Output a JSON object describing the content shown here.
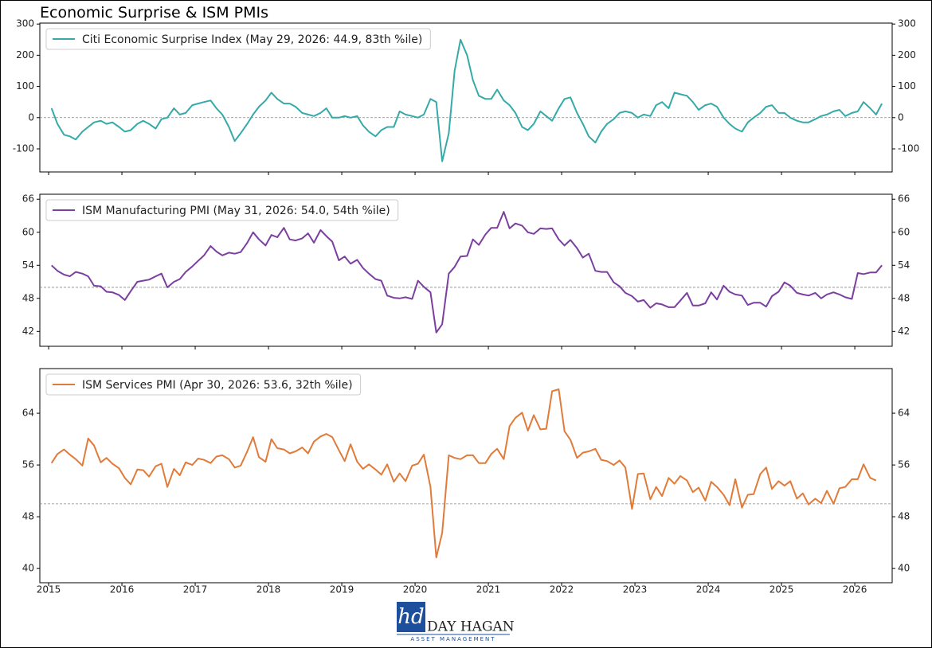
{
  "title": "Economic Surprise & ISM PMIs",
  "logo": {
    "mark": "hd",
    "name": "DAY HAGAN",
    "subtitle": "ASSET MANAGEMENT"
  },
  "chart_data": [
    {
      "type": "line",
      "legend": "upper left",
      "reference_line": 0,
      "xlim": [
        2014.88,
        2026.51
      ],
      "xticks": [
        2015,
        2016,
        2017,
        2018,
        2019,
        2020,
        2021,
        2022,
        2023,
        2024,
        2025,
        2026
      ],
      "ylim": [
        -174,
        303
      ],
      "yticks": [
        -100,
        0,
        100,
        200,
        300
      ],
      "series": [
        {
          "name": "Citi Economic Surprise Index (May 29, 2026: 44.9, 83th %ile)",
          "color": "#35aaa8",
          "x": [
            2015.04,
            2015.12,
            2015.21,
            2015.29,
            2015.37,
            2015.46,
            2015.54,
            2015.62,
            2015.71,
            2015.79,
            2015.87,
            2015.96,
            2016.04,
            2016.12,
            2016.21,
            2016.29,
            2016.37,
            2016.46,
            2016.54,
            2016.62,
            2016.71,
            2016.79,
            2016.87,
            2016.96,
            2017.04,
            2017.12,
            2017.21,
            2017.29,
            2017.37,
            2017.46,
            2017.54,
            2017.62,
            2017.71,
            2017.79,
            2017.87,
            2017.96,
            2018.04,
            2018.12,
            2018.21,
            2018.29,
            2018.37,
            2018.46,
            2018.54,
            2018.62,
            2018.71,
            2018.79,
            2018.87,
            2018.96,
            2019.04,
            2019.12,
            2019.21,
            2019.29,
            2019.37,
            2019.46,
            2019.54,
            2019.62,
            2019.71,
            2019.79,
            2019.87,
            2019.96,
            2020.04,
            2020.12,
            2020.21,
            2020.29,
            2020.37,
            2020.46,
            2020.54,
            2020.62,
            2020.71,
            2020.79,
            2020.87,
            2020.96,
            2021.04,
            2021.12,
            2021.21,
            2021.29,
            2021.37,
            2021.46,
            2021.54,
            2021.62,
            2021.71,
            2021.79,
            2021.87,
            2021.96,
            2022.04,
            2022.12,
            2022.21,
            2022.29,
            2022.37,
            2022.46,
            2022.54,
            2022.62,
            2022.71,
            2022.79,
            2022.87,
            2022.96,
            2023.04,
            2023.12,
            2023.21,
            2023.29,
            2023.37,
            2023.46,
            2023.54,
            2023.62,
            2023.71,
            2023.79,
            2023.87,
            2023.96,
            2024.04,
            2024.12,
            2024.21,
            2024.29,
            2024.37,
            2024.46,
            2024.54,
            2024.62,
            2024.71,
            2024.79,
            2024.87,
            2024.96,
            2025.04,
            2025.12,
            2025.21,
            2025.29,
            2025.37,
            2025.46,
            2025.54,
            2025.62,
            2025.71,
            2025.79,
            2025.87,
            2025.96,
            2026.04,
            2026.12,
            2026.21,
            2026.29,
            2026.37
          ],
          "values": [
            30,
            -20,
            -55,
            -60,
            -70,
            -45,
            -30,
            -15,
            -10,
            -20,
            -15,
            -30,
            -45,
            -40,
            -20,
            -10,
            -20,
            -35,
            -5,
            0,
            30,
            10,
            15,
            40,
            45,
            50,
            55,
            30,
            10,
            -30,
            -75,
            -50,
            -20,
            10,
            35,
            55,
            80,
            60,
            45,
            45,
            35,
            15,
            10,
            5,
            15,
            30,
            0,
            0,
            5,
            0,
            5,
            -25,
            -45,
            -60,
            -40,
            -30,
            -30,
            20,
            10,
            5,
            0,
            10,
            60,
            50,
            -140,
            -50,
            150,
            250,
            200,
            120,
            70,
            60,
            60,
            90,
            55,
            40,
            15,
            -30,
            -40,
            -20,
            20,
            5,
            -10,
            30,
            60,
            65,
            15,
            -20,
            -60,
            -80,
            -45,
            -20,
            -5,
            15,
            20,
            15,
            0,
            10,
            5,
            40,
            50,
            30,
            80,
            75,
            70,
            50,
            25,
            40,
            45,
            35,
            0,
            -20,
            -35,
            -45,
            -15,
            0,
            15,
            35,
            40,
            15,
            15,
            0,
            -10,
            -15,
            -15,
            -5,
            5,
            10,
            20,
            25,
            5,
            15,
            20,
            50,
            30,
            10,
            44.9
          ]
        }
      ]
    },
    {
      "type": "line",
      "legend": "upper left",
      "reference_line": 50,
      "xlim": [
        2014.88,
        2026.51
      ],
      "xticks": [
        2015,
        2016,
        2017,
        2018,
        2019,
        2020,
        2021,
        2022,
        2023,
        2024,
        2025,
        2026
      ],
      "ylim": [
        39.3,
        66.9
      ],
      "yticks": [
        42,
        48,
        54,
        60,
        66
      ],
      "series": [
        {
          "name": "ISM Manufacturing PMI (May 31, 2026: 54.0, 54th %ile)",
          "color": "#7b3fa0",
          "x": [
            2015.04,
            2015.12,
            2015.21,
            2015.29,
            2015.37,
            2015.46,
            2015.54,
            2015.62,
            2015.71,
            2015.79,
            2015.87,
            2015.96,
            2016.04,
            2016.12,
            2016.21,
            2016.29,
            2016.37,
            2016.46,
            2016.54,
            2016.62,
            2016.71,
            2016.79,
            2016.87,
            2016.96,
            2017.04,
            2017.12,
            2017.21,
            2017.29,
            2017.37,
            2017.46,
            2017.54,
            2017.62,
            2017.71,
            2017.79,
            2017.87,
            2017.96,
            2018.04,
            2018.12,
            2018.21,
            2018.29,
            2018.37,
            2018.46,
            2018.54,
            2018.62,
            2018.71,
            2018.79,
            2018.87,
            2018.96,
            2019.04,
            2019.12,
            2019.21,
            2019.29,
            2019.37,
            2019.46,
            2019.54,
            2019.62,
            2019.71,
            2019.79,
            2019.87,
            2019.96,
            2020.04,
            2020.12,
            2020.21,
            2020.29,
            2020.37,
            2020.46,
            2020.54,
            2020.62,
            2020.71,
            2020.79,
            2020.87,
            2020.96,
            2021.04,
            2021.12,
            2021.21,
            2021.29,
            2021.37,
            2021.46,
            2021.54,
            2021.62,
            2021.71,
            2021.79,
            2021.87,
            2021.96,
            2022.04,
            2022.12,
            2022.21,
            2022.29,
            2022.37,
            2022.46,
            2022.54,
            2022.62,
            2022.71,
            2022.79,
            2022.87,
            2022.96,
            2023.04,
            2023.12,
            2023.21,
            2023.29,
            2023.37,
            2023.46,
            2023.54,
            2023.62,
            2023.71,
            2023.79,
            2023.87,
            2023.96,
            2024.04,
            2024.12,
            2024.21,
            2024.29,
            2024.37,
            2024.46,
            2024.54,
            2024.62,
            2024.71,
            2024.79,
            2024.87,
            2024.96,
            2025.04,
            2025.12,
            2025.21,
            2025.29,
            2025.37,
            2025.46,
            2025.54,
            2025.62,
            2025.71,
            2025.79,
            2025.87,
            2025.96,
            2026.04,
            2026.12,
            2026.21,
            2026.29,
            2026.37
          ],
          "values": [
            54.0,
            53.0,
            52.3,
            52.0,
            52.8,
            52.5,
            52.0,
            50.3,
            50.2,
            49.2,
            49.1,
            48.6,
            47.7,
            49.3,
            51.0,
            51.2,
            51.4,
            52.0,
            52.5,
            50.0,
            51.0,
            51.5,
            52.8,
            53.8,
            54.8,
            55.8,
            57.5,
            56.5,
            55.8,
            56.3,
            56.1,
            56.4,
            58.1,
            60.0,
            58.7,
            57.6,
            59.5,
            59.1,
            60.8,
            58.7,
            58.5,
            58.9,
            59.8,
            58.1,
            60.4,
            59.3,
            58.3,
            54.9,
            55.6,
            54.3,
            55.0,
            53.5,
            52.5,
            51.5,
            51.2,
            48.5,
            48.1,
            48.0,
            48.2,
            47.9,
            51.2,
            50.1,
            49.1,
            41.8,
            43.3,
            52.5,
            53.7,
            55.6,
            55.7,
            58.7,
            57.7,
            59.6,
            60.8,
            60.8,
            63.7,
            60.7,
            61.6,
            61.2,
            60.0,
            59.7,
            60.7,
            60.6,
            60.7,
            58.7,
            57.6,
            58.6,
            57.1,
            55.4,
            56.1,
            53.0,
            52.8,
            52.8,
            50.9,
            50.2,
            49.0,
            48.4,
            47.4,
            47.7,
            46.3,
            47.1,
            46.9,
            46.4,
            46.4,
            47.6,
            49.0,
            46.7,
            46.7,
            47.1,
            49.1,
            47.8,
            50.3,
            49.2,
            48.7,
            48.5,
            46.8,
            47.2,
            47.2,
            46.5,
            48.4,
            49.2,
            50.9,
            50.3,
            49.0,
            48.7,
            48.5,
            49.0,
            48.0,
            48.7,
            49.1,
            48.7,
            48.2,
            47.9,
            52.6,
            52.4,
            52.7,
            52.7,
            54.0
          ]
        }
      ]
    },
    {
      "type": "line",
      "legend": "upper left",
      "reference_line": 50,
      "xlim": [
        2014.88,
        2026.51
      ],
      "xticks": [
        2015,
        2016,
        2017,
        2018,
        2019,
        2020,
        2021,
        2022,
        2023,
        2024,
        2025,
        2026
      ],
      "ylim": [
        37.8,
        70.9
      ],
      "yticks": [
        40,
        48,
        56,
        64
      ],
      "series": [
        {
          "name": "ISM Services PMI (Apr 30, 2026: 53.6, 32th %ile)",
          "color": "#e07b39",
          "x": [
            2015.04,
            2015.12,
            2015.21,
            2015.29,
            2015.37,
            2015.46,
            2015.54,
            2015.62,
            2015.71,
            2015.79,
            2015.87,
            2015.96,
            2016.04,
            2016.12,
            2016.21,
            2016.29,
            2016.37,
            2016.46,
            2016.54,
            2016.62,
            2016.71,
            2016.79,
            2016.87,
            2016.96,
            2017.04,
            2017.12,
            2017.21,
            2017.29,
            2017.37,
            2017.46,
            2017.54,
            2017.62,
            2017.71,
            2017.79,
            2017.87,
            2017.96,
            2018.04,
            2018.12,
            2018.21,
            2018.29,
            2018.37,
            2018.46,
            2018.54,
            2018.62,
            2018.71,
            2018.79,
            2018.87,
            2018.96,
            2019.04,
            2019.12,
            2019.21,
            2019.29,
            2019.37,
            2019.46,
            2019.54,
            2019.62,
            2019.71,
            2019.79,
            2019.87,
            2019.96,
            2020.04,
            2020.12,
            2020.21,
            2020.29,
            2020.37,
            2020.46,
            2020.54,
            2020.62,
            2020.71,
            2020.79,
            2020.87,
            2020.96,
            2021.04,
            2021.12,
            2021.21,
            2021.29,
            2021.37,
            2021.46,
            2021.54,
            2021.62,
            2021.71,
            2021.79,
            2021.87,
            2021.96,
            2022.04,
            2022.12,
            2022.21,
            2022.29,
            2022.37,
            2022.46,
            2022.54,
            2022.62,
            2022.71,
            2022.79,
            2022.87,
            2022.96,
            2023.04,
            2023.12,
            2023.21,
            2023.29,
            2023.37,
            2023.46,
            2023.54,
            2023.62,
            2023.71,
            2023.79,
            2023.87,
            2023.96,
            2024.04,
            2024.12,
            2024.21,
            2024.29,
            2024.37,
            2024.46,
            2024.54,
            2024.62,
            2024.71,
            2024.79,
            2024.87,
            2024.96,
            2025.04,
            2025.12,
            2025.21,
            2025.29,
            2025.37,
            2025.46,
            2025.54,
            2025.62,
            2025.71,
            2025.79,
            2025.87,
            2025.96,
            2026.04,
            2026.12,
            2026.21,
            2026.29
          ],
          "values": [
            56.3,
            57.7,
            58.4,
            57.6,
            56.9,
            55.9,
            60.1,
            59.0,
            56.4,
            57.1,
            56.2,
            55.5,
            54.0,
            53.0,
            55.3,
            55.2,
            54.2,
            55.8,
            56.2,
            52.6,
            55.4,
            54.4,
            56.4,
            56.0,
            57.0,
            56.8,
            56.3,
            57.3,
            57.5,
            56.9,
            55.6,
            55.9,
            58.1,
            60.3,
            57.2,
            56.5,
            60.0,
            58.6,
            58.4,
            57.8,
            58.1,
            58.7,
            57.8,
            59.6,
            60.4,
            60.8,
            60.3,
            58.3,
            56.6,
            59.2,
            56.5,
            55.4,
            56.1,
            55.3,
            54.5,
            56.1,
            53.4,
            54.7,
            53.5,
            55.9,
            56.2,
            57.6,
            52.6,
            41.7,
            45.5,
            57.5,
            57.1,
            56.9,
            57.5,
            57.5,
            56.3,
            56.3,
            57.7,
            58.5,
            56.9,
            62.0,
            63.3,
            64.1,
            61.3,
            63.7,
            61.5,
            61.6,
            67.4,
            67.7,
            61.2,
            59.9,
            57.1,
            57.9,
            58.1,
            58.5,
            56.8,
            56.6,
            56.0,
            56.7,
            55.6,
            49.2,
            54.6,
            54.7,
            50.7,
            52.6,
            51.2,
            54.0,
            53.1,
            54.3,
            53.6,
            51.8,
            52.5,
            50.5,
            53.4,
            52.6,
            51.4,
            49.8,
            53.8,
            49.4,
            51.4,
            51.5,
            54.6,
            55.6,
            52.3,
            53.5,
            52.8,
            53.5,
            50.8,
            51.6,
            49.9,
            50.8,
            50.1,
            52.0,
            50.0,
            52.4,
            52.6,
            53.8,
            53.8,
            56.1,
            54.0,
            53.6
          ]
        }
      ]
    }
  ]
}
